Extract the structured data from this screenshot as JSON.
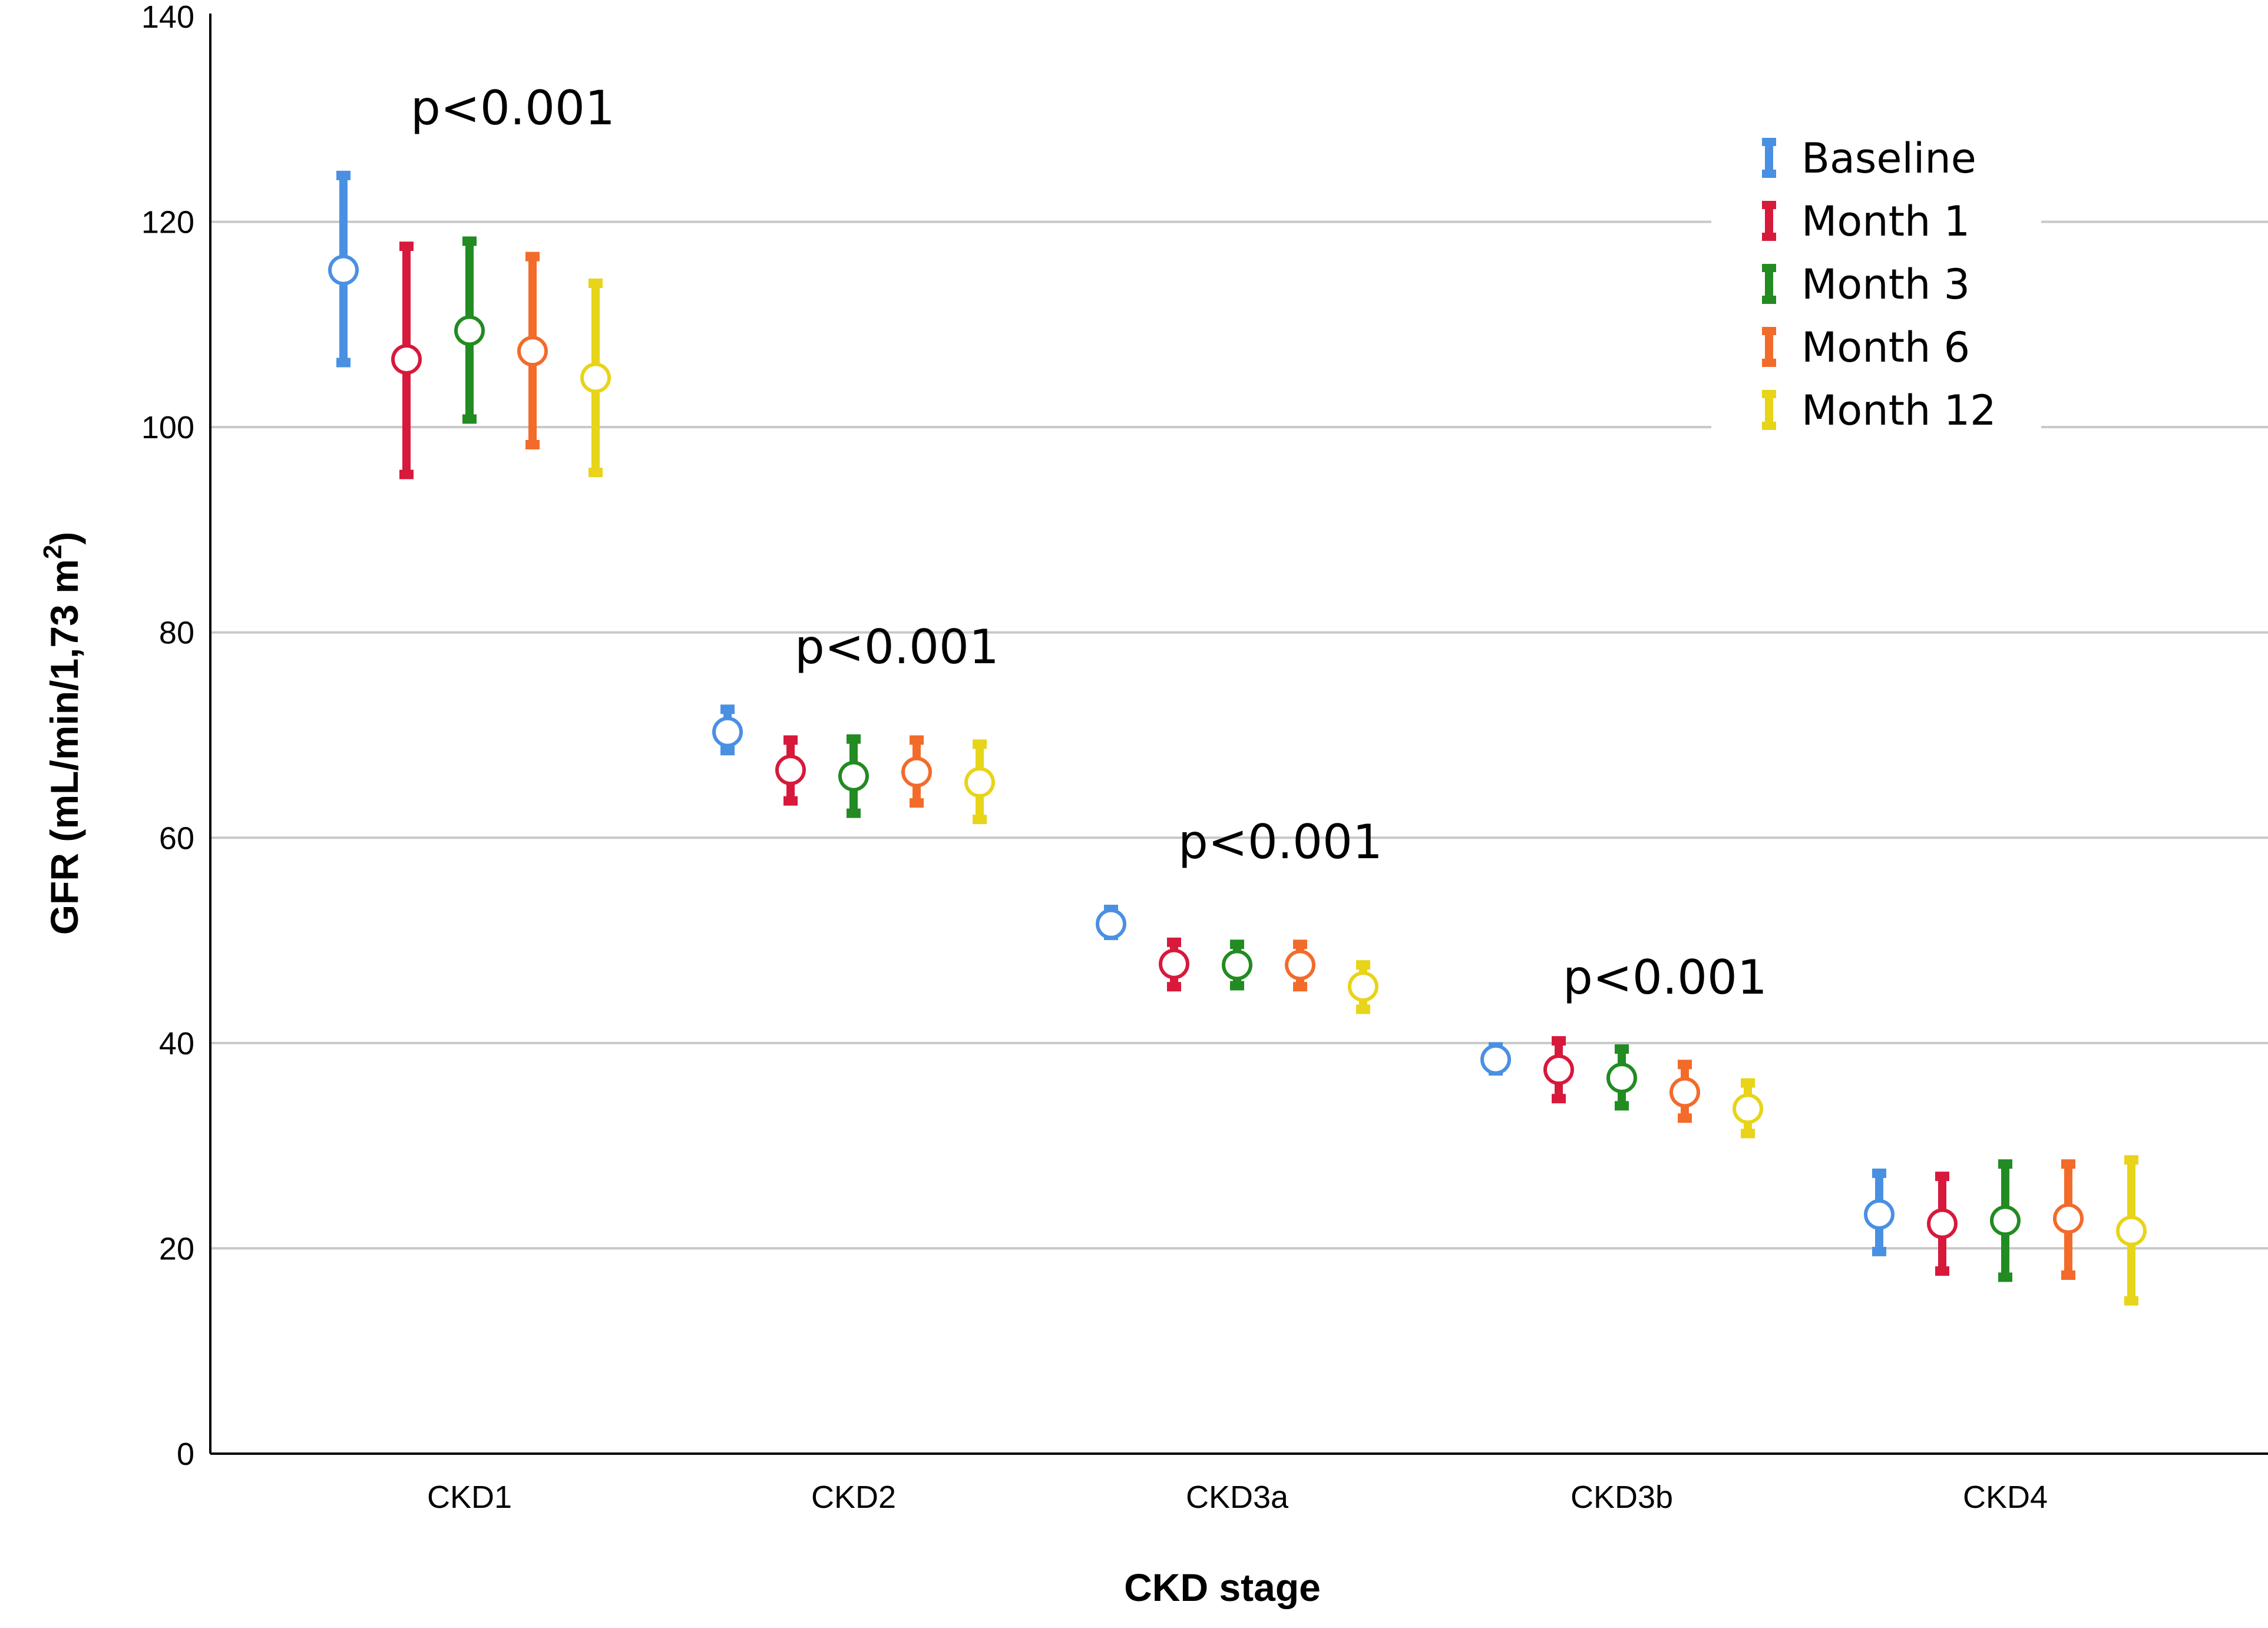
{
  "chart_data": {
    "type": "errorbar",
    "title": "",
    "xlabel": "CKD stage",
    "ylabel_main": "GFR (mL/min/1,73 m",
    "ylabel_sup": "2",
    "ylabel_close": ")",
    "ylim": [
      0,
      140
    ],
    "yticks": [
      0,
      20,
      40,
      60,
      80,
      100,
      120,
      140
    ],
    "grid": true,
    "legend_position": "top-right",
    "categories": [
      "CKD1",
      "CKD2",
      "CKD3a",
      "CKD3b",
      "CKD4"
    ],
    "series": [
      {
        "name": "Baseline",
        "color": "#4a90e2",
        "mean": [
          115.3,
          70.3,
          51.6,
          38.4,
          23.3
        ],
        "low": [
          106.0,
          68.2,
          50.2,
          37.0,
          19.4
        ],
        "high": [
          124.8,
          72.8,
          53.3,
          39.9,
          27.6
        ]
      },
      {
        "name": "Month 1",
        "color": "#d7193b",
        "mean": [
          106.6,
          66.6,
          47.7,
          37.4,
          22.4
        ],
        "low": [
          95.1,
          63.3,
          45.2,
          34.3,
          17.5
        ],
        "high": [
          117.9,
          69.8,
          50.1,
          40.5,
          27.3
        ]
      },
      {
        "name": "Month 3",
        "color": "#228b22",
        "mean": [
          109.4,
          66.0,
          47.6,
          36.6,
          22.7
        ],
        "low": [
          100.5,
          62.1,
          45.3,
          33.6,
          16.9
        ],
        "high": [
          118.4,
          69.9,
          49.9,
          39.7,
          28.5
        ]
      },
      {
        "name": "Month 6",
        "color": "#f26b2b",
        "mean": [
          107.4,
          66.4,
          47.6,
          35.2,
          22.9
        ],
        "low": [
          98.0,
          63.1,
          45.2,
          32.4,
          17.1
        ],
        "high": [
          116.9,
          69.8,
          49.9,
          38.2,
          28.5
        ]
      },
      {
        "name": "Month 12",
        "color": "#e8d418",
        "mean": [
          104.8,
          65.4,
          45.5,
          33.6,
          21.7
        ],
        "low": [
          95.3,
          61.5,
          43.0,
          30.9,
          14.6
        ],
        "high": [
          114.3,
          69.4,
          47.9,
          36.4,
          28.9
        ]
      }
    ],
    "annotations": [
      {
        "text": "p<0.001",
        "category": "CKD1",
        "value": 129.5
      },
      {
        "text": "p<0.001",
        "category": "CKD2",
        "value": 77.0
      },
      {
        "text": "p<0.001",
        "category": "CKD3a",
        "value": 58.0
      },
      {
        "text": "p<0.001",
        "category": "CKD3b",
        "value": 44.8
      }
    ]
  }
}
